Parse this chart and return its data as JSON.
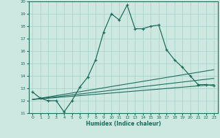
{
  "xlabel": "Humidex (Indice chaleur)",
  "bg_color": "#cce8e0",
  "grid_color": "#aad4cc",
  "line_color": "#1a6b5a",
  "xlim": [
    -0.5,
    23.5
  ],
  "ylim": [
    11,
    20
  ],
  "xticks": [
    0,
    1,
    2,
    3,
    4,
    5,
    6,
    7,
    8,
    9,
    10,
    11,
    12,
    13,
    14,
    15,
    16,
    17,
    18,
    19,
    20,
    21,
    22,
    23
  ],
  "yticks": [
    11,
    12,
    13,
    14,
    15,
    16,
    17,
    18,
    19,
    20
  ],
  "main_x": [
    0,
    1,
    2,
    3,
    4,
    5,
    6,
    7,
    8,
    9,
    10,
    11,
    12,
    13,
    14,
    15,
    16,
    17,
    18,
    19,
    20,
    21,
    22,
    23
  ],
  "main_y": [
    12.7,
    12.2,
    12.0,
    12.0,
    11.1,
    12.0,
    13.1,
    13.9,
    15.3,
    17.5,
    19.0,
    18.5,
    19.7,
    17.8,
    17.8,
    18.0,
    18.1,
    16.1,
    15.3,
    14.7,
    14.0,
    13.3,
    13.3,
    13.2
  ],
  "line1_x": [
    0,
    23
  ],
  "line1_y": [
    12.1,
    14.5
  ],
  "line2_x": [
    0,
    23
  ],
  "line2_y": [
    12.1,
    13.8
  ],
  "line3_x": [
    0,
    23
  ],
  "line3_y": [
    12.1,
    13.3
  ]
}
